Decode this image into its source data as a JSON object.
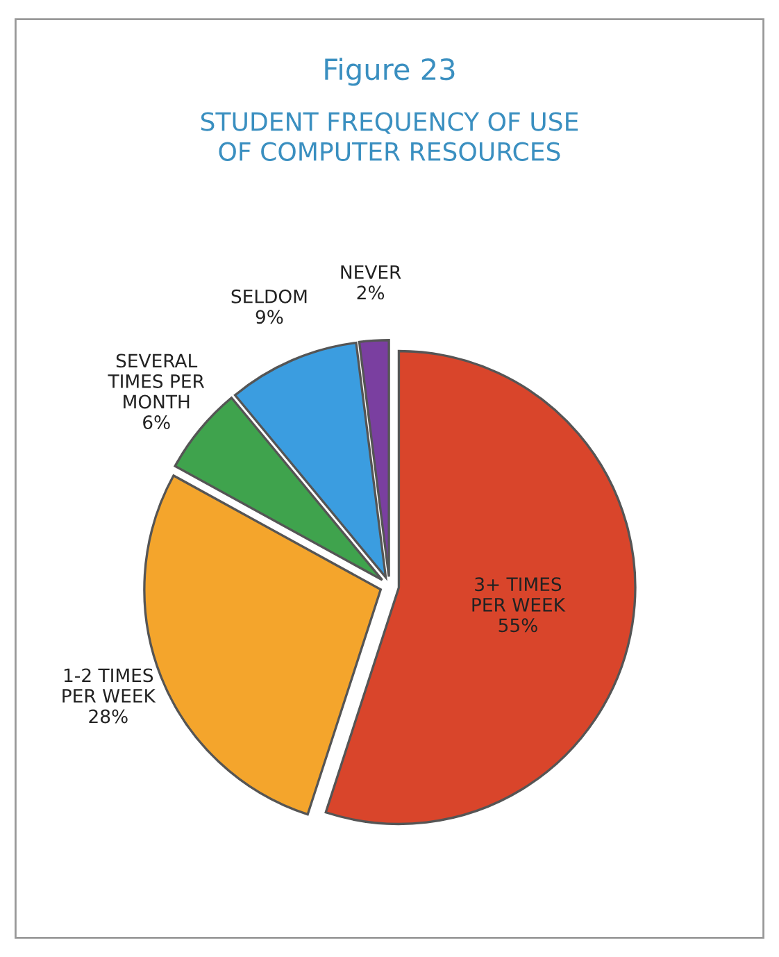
{
  "chart_data": {
    "type": "pie",
    "title": "Figure 23",
    "subtitle": "STUDENT FREQUENCY OF USE\nOF COMPUTER RESOURCES",
    "categories": [
      "3+ TIMES\nPER WEEK",
      "1-2 TIMES\nPER WEEK",
      "SEVERAL\nTIMES PER\nMONTH",
      "SELDOM",
      "NEVER"
    ],
    "values": [
      55,
      28,
      6,
      9,
      2
    ],
    "value_labels": [
      "55%",
      "28%",
      "6%",
      "9%",
      "2%"
    ],
    "colors": [
      "#d9452b",
      "#f4a52c",
      "#3fa34d",
      "#3b9de0",
      "#7a3fa0"
    ],
    "legend": false
  }
}
